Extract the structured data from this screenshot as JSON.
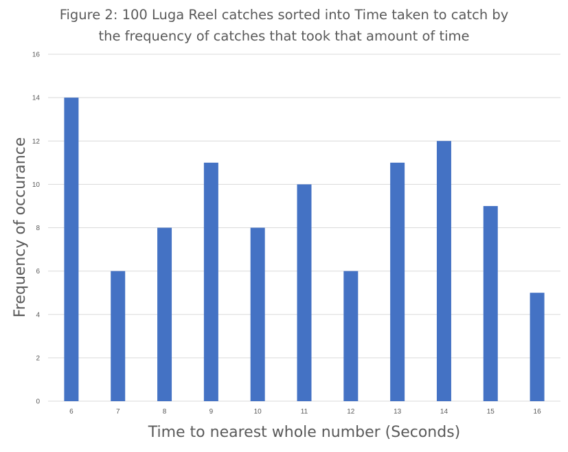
{
  "chart_data": {
    "type": "bar",
    "title": "Figure 2: 100 Luga Reel catches sorted into Time taken to catch by the frequency of catches that took that amount of time",
    "title_lines": [
      "Figure 2: 100 Luga Reel catches sorted into Time taken to catch by",
      "the frequency of catches that took that amount of time"
    ],
    "xlabel": "Time to  nearest whole number (Seconds)",
    "ylabel": "Frequency of occurance",
    "categories": [
      "6",
      "7",
      "8",
      "9",
      "10",
      "11",
      "12",
      "13",
      "14",
      "15",
      "16"
    ],
    "values": [
      14,
      6,
      8,
      11,
      8,
      10,
      6,
      11,
      12,
      9,
      5
    ],
    "ylim": [
      0,
      16
    ],
    "yticks": [
      "0",
      "2",
      "4",
      "6",
      "8",
      "10",
      "12",
      "14",
      "16"
    ],
    "grid": true,
    "legend": "none",
    "bar_color": "#4472C4",
    "grid_color": "#D9D9D9"
  }
}
